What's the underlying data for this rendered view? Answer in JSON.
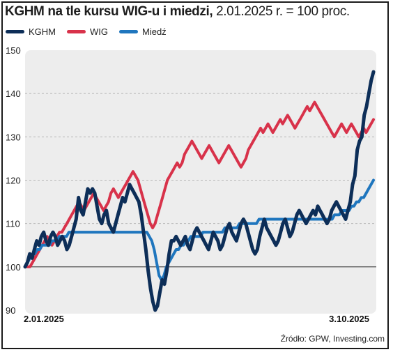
{
  "header": {
    "title_bold": "KGHM na tle kursu WIG-u i miedzi,",
    "title_rest": "2.01.2025 r. = 100 proc."
  },
  "source": "Źródło: GPW, Investing.com",
  "colors": {
    "KGHM": "#0d2e58",
    "WIG": "#d8324a",
    "Miedź": "#1f76be",
    "panel": "#ededed",
    "baseline": "#444444"
  },
  "chart_data": {
    "type": "line",
    "title": "KGHM na tle kursu WIG-u i miedzi, 2.01.2025 r. = 100 proc.",
    "xlabel": "",
    "ylabel": "",
    "x_tick_labels": [
      "2.01.2025",
      "3.10.2025"
    ],
    "ylim": [
      90,
      150
    ],
    "y_ticks": [
      90,
      100,
      110,
      120,
      130,
      140,
      150
    ],
    "reference_line": 100,
    "grid": true,
    "legend_position": "top-left",
    "series": [
      {
        "name": "KGHM",
        "values": [
          100,
          101,
          103,
          102,
          104,
          106,
          105,
          107,
          108,
          106,
          105,
          107,
          108,
          107,
          105,
          106,
          107,
          106,
          104,
          105,
          107,
          109,
          111,
          116,
          113,
          112,
          115,
          118,
          117,
          118,
          117,
          114,
          111,
          110,
          112,
          113,
          110,
          109,
          108,
          110,
          112,
          114,
          116,
          115,
          117,
          119,
          118,
          117,
          116,
          115,
          112,
          108,
          104,
          99,
          95,
          92,
          90,
          91,
          94,
          97,
          96,
          99,
          103,
          106,
          106,
          107,
          106,
          105,
          106,
          107,
          105,
          104,
          106,
          108,
          109,
          108,
          107,
          106,
          105,
          104,
          106,
          108,
          107,
          106,
          104,
          105,
          107,
          109,
          110,
          108,
          107,
          106,
          108,
          110,
          111,
          110,
          108,
          106,
          104,
          103,
          104,
          107,
          109,
          111,
          109,
          108,
          107,
          106,
          105,
          106,
          108,
          110,
          111,
          109,
          107,
          108,
          110,
          112,
          113,
          112,
          111,
          110,
          111,
          112,
          113,
          112,
          114,
          113,
          112,
          111,
          110,
          111,
          113,
          114,
          115,
          114,
          113,
          112,
          111,
          113,
          115,
          119,
          121,
          127,
          129,
          130,
          135,
          137,
          140,
          143,
          145
        ]
      },
      {
        "name": "WIG",
        "values": [
          100,
          100,
          100,
          101,
          102,
          103,
          104,
          105,
          106,
          107,
          106,
          105,
          106,
          107,
          108,
          108,
          109,
          110,
          111,
          112,
          113,
          114,
          115,
          114,
          113,
          114,
          115,
          116,
          117,
          116,
          115,
          114,
          113,
          114,
          115,
          117,
          118,
          117,
          116,
          117,
          118,
          119,
          120,
          121,
          122,
          121,
          120,
          118,
          116,
          114,
          112,
          110,
          109,
          110,
          112,
          114,
          116,
          118,
          120,
          121,
          122,
          123,
          124,
          123,
          124,
          126,
          127,
          128,
          129,
          128,
          127,
          126,
          125,
          126,
          127,
          128,
          127,
          126,
          125,
          124,
          125,
          126,
          127,
          128,
          127,
          126,
          125,
          124,
          123,
          124,
          125,
          127,
          128,
          129,
          130,
          131,
          132,
          131,
          132,
          133,
          132,
          131,
          132,
          133,
          134,
          133,
          134,
          135,
          134,
          133,
          132,
          133,
          134,
          135,
          136,
          137,
          136,
          137,
          138,
          137,
          136,
          135,
          134,
          133,
          132,
          131,
          130,
          131,
          132,
          133,
          132,
          131,
          132,
          133,
          132,
          131,
          130,
          131,
          132,
          131,
          132,
          133,
          134
        ]
      },
      {
        "name": "Miedź",
        "values": [
          100,
          101,
          102,
          103,
          103,
          104,
          104,
          105,
          105,
          105,
          105,
          106,
          106,
          106,
          107,
          107,
          107,
          107,
          108,
          108,
          108,
          108,
          108,
          108,
          108,
          108,
          108,
          108,
          108,
          108,
          108,
          108,
          108,
          108,
          108,
          108,
          108,
          108,
          108,
          108,
          108,
          108,
          108,
          108,
          108,
          108,
          108,
          108,
          108,
          108,
          108,
          107,
          106,
          104,
          101,
          98,
          97,
          98,
          100,
          101,
          102,
          103,
          104,
          104,
          105,
          105,
          106,
          106,
          107,
          107,
          107,
          107,
          107,
          108,
          108,
          108,
          108,
          108,
          108,
          108,
          108,
          108,
          109,
          109,
          109,
          109,
          109,
          109,
          110,
          110,
          110,
          110,
          110,
          110,
          110,
          110,
          111,
          111,
          111,
          111,
          111,
          111,
          111,
          111,
          111,
          111,
          111,
          111,
          111,
          111,
          111,
          111,
          111,
          111,
          111,
          111,
          111,
          111,
          111,
          111,
          111,
          111,
          111,
          111,
          111,
          111,
          111,
          112,
          112,
          112,
          113,
          113,
          113,
          113,
          114,
          114,
          115,
          115,
          116,
          116,
          117,
          118,
          119,
          120
        ]
      }
    ]
  }
}
